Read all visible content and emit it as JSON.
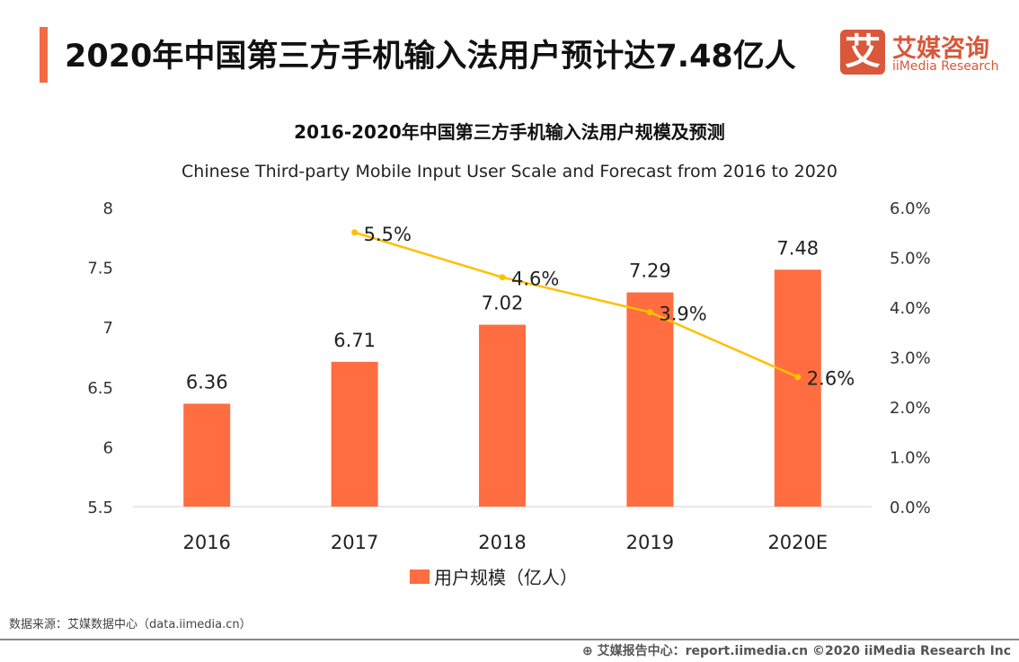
{
  "header": {
    "title": "2020年中国第三方手机输入法用户预计达7.48亿人",
    "logo_mark": "艾",
    "logo_cn": "艾媒咨询",
    "logo_en": "iiMedia Research"
  },
  "source": "数据来源：艾媒数据中心（data.iimedia.cn）",
  "footer": "⊕ 艾媒报告中心：report.iimedia.cn   ©2020  iiMedia Research  Inc",
  "colors": {
    "bar": "#ff6d40",
    "line": "#ffc000",
    "accent": "#f26b43",
    "brand": "#d9573a"
  },
  "chart_data": {
    "type": "bar+line",
    "title": "2016-2020年中国第三方手机输入法用户规模及预测",
    "subtitle": "Chinese Third-party Mobile Input User Scale and Forecast from 2016 to 2020",
    "categories": [
      "2016",
      "2017",
      "2018",
      "2019",
      "2020E"
    ],
    "series": [
      {
        "name": "用户规模（亿人）",
        "type": "bar",
        "axis": "left",
        "values": [
          6.36,
          6.71,
          7.02,
          7.29,
          7.48
        ],
        "labels": [
          "6.36",
          "6.71",
          "7.02",
          "7.29",
          "7.48"
        ]
      },
      {
        "type": "line",
        "axis": "right",
        "values": [
          null,
          5.5,
          4.6,
          3.9,
          2.6
        ],
        "labels": [
          "",
          "5.5%",
          "4.6%",
          "3.9%",
          "2.6%"
        ]
      }
    ],
    "left_axis": {
      "ylim": [
        5.5,
        8
      ],
      "ticks": [
        "5.5",
        "6",
        "6.5",
        "7",
        "7.5",
        "8"
      ]
    },
    "right_axis": {
      "ylim": [
        0,
        6
      ],
      "ticks": [
        "0.0%",
        "1.0%",
        "2.0%",
        "3.0%",
        "4.0%",
        "5.0%",
        "6.0%"
      ]
    },
    "legend": {
      "placement": "bottom",
      "entries": [
        "用户规模（亿人）"
      ]
    },
    "grid": false
  }
}
